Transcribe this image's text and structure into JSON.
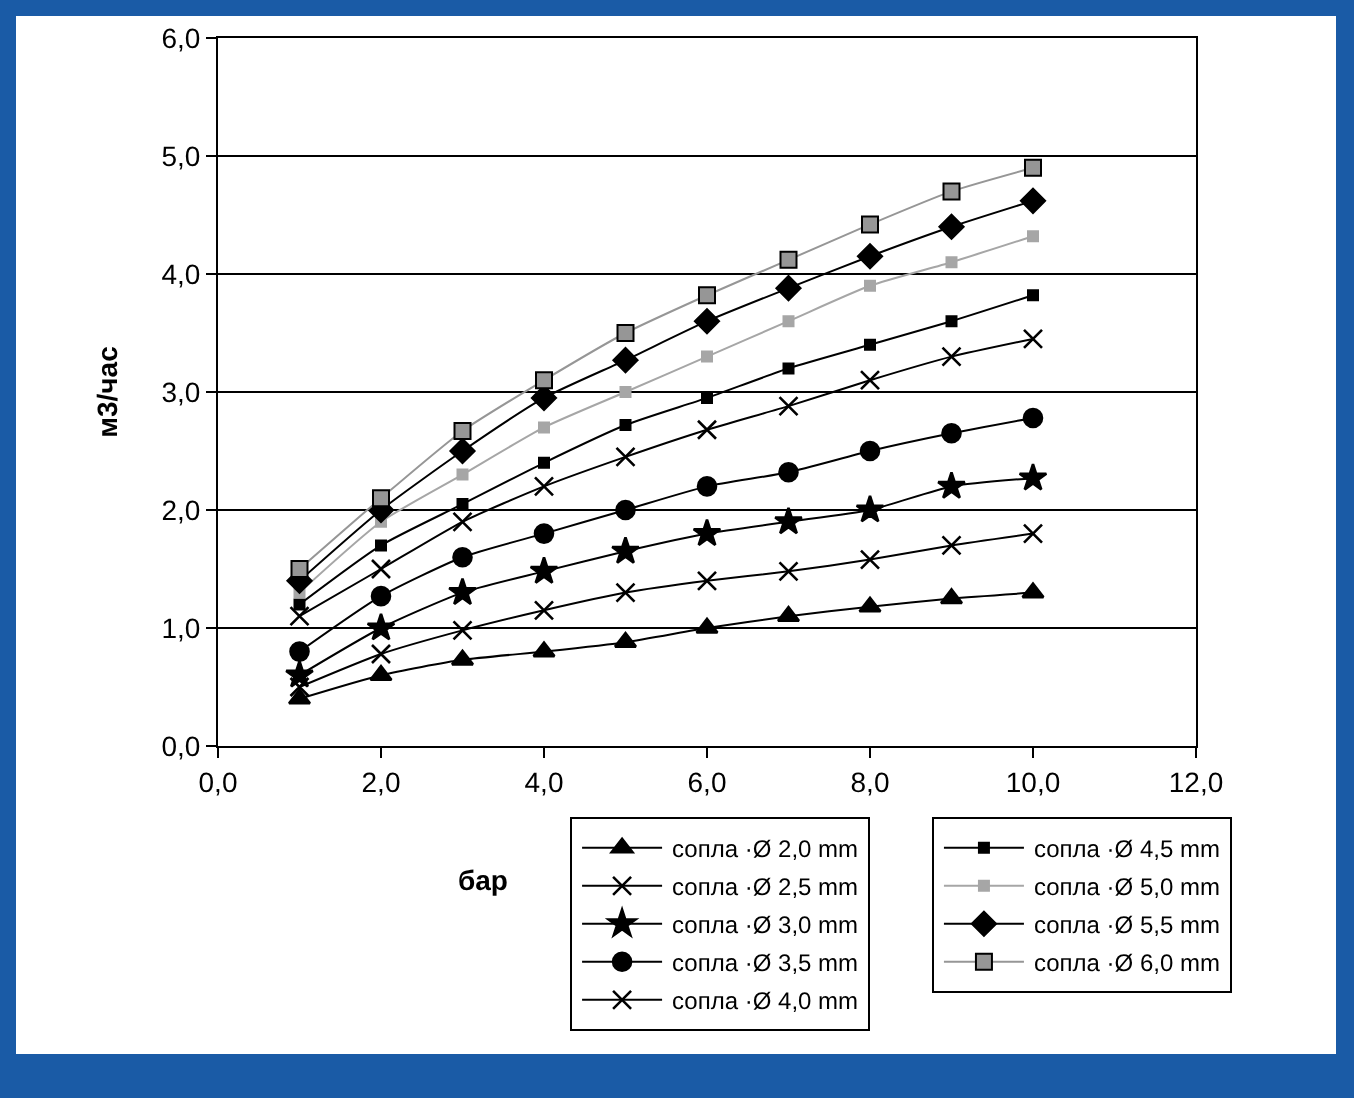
{
  "chart_data": {
    "type": "line",
    "xlabel": "бар",
    "ylabel": "м3/час",
    "x": [
      1,
      2,
      3,
      4,
      5,
      6,
      7,
      8,
      9,
      10
    ],
    "xlim": [
      0,
      12
    ],
    "xticks": [
      {
        "value": 0,
        "label": "0,0"
      },
      {
        "value": 2,
        "label": "2,0"
      },
      {
        "value": 4,
        "label": "4,0"
      },
      {
        "value": 6,
        "label": "6,0"
      },
      {
        "value": 8,
        "label": "8,0"
      },
      {
        "value": 10,
        "label": "10,0"
      },
      {
        "value": 12,
        "label": "12,0"
      }
    ],
    "ylim": [
      0,
      6
    ],
    "yticks": [
      {
        "value": 0,
        "label": "0,0"
      },
      {
        "value": 1,
        "label": "1,0"
      },
      {
        "value": 2,
        "label": "2,0"
      },
      {
        "value": 3,
        "label": "3,0"
      },
      {
        "value": 4,
        "label": "4,0"
      },
      {
        "value": 5,
        "label": "5,0"
      },
      {
        "value": 6,
        "label": "6,0"
      }
    ],
    "grid": "y",
    "legend": "bottom",
    "line_style": "solid",
    "series": [
      {
        "name": "сопла ·Ø 2,0 mm",
        "color": "#000000",
        "marker": "triangle",
        "values": [
          0.4,
          0.6,
          0.73,
          0.8,
          0.88,
          1.0,
          1.1,
          1.18,
          1.25,
          1.3
        ]
      },
      {
        "name": "сопла ·Ø 2,5 mm",
        "color": "#000000",
        "marker": "cross",
        "values": [
          0.5,
          0.78,
          0.98,
          1.15,
          1.3,
          1.4,
          1.48,
          1.58,
          1.7,
          1.8
        ]
      },
      {
        "name": "сопла ·Ø 3,0 mm",
        "color": "#000000",
        "marker": "star",
        "values": [
          0.6,
          1.0,
          1.3,
          1.48,
          1.65,
          1.8,
          1.9,
          2.0,
          2.2,
          2.27
        ]
      },
      {
        "name": "сопла ·Ø 3,5 mm",
        "color": "#000000",
        "marker": "circle",
        "values": [
          0.8,
          1.27,
          1.6,
          1.8,
          2.0,
          2.2,
          2.32,
          2.5,
          2.65,
          2.78
        ]
      },
      {
        "name": "сопла ·Ø 4,0 mm",
        "color": "#000000",
        "marker": "cross",
        "values": [
          1.1,
          1.5,
          1.9,
          2.2,
          2.45,
          2.68,
          2.88,
          3.1,
          3.3,
          3.45
        ]
      },
      {
        "name": "сопла ·Ø 4,5 mm",
        "color": "#000000",
        "marker": "square",
        "values": [
          1.2,
          1.7,
          2.05,
          2.4,
          2.72,
          2.95,
          3.2,
          3.4,
          3.6,
          3.82
        ]
      },
      {
        "name": "сопла ·Ø 5,0 mm",
        "color": "#a6a6a6",
        "marker": "square",
        "values": [
          1.3,
          1.9,
          2.3,
          2.7,
          3.0,
          3.3,
          3.6,
          3.9,
          4.1,
          4.32
        ]
      },
      {
        "name": "сопла ·Ø 5,5 mm",
        "color": "#000000",
        "marker": "diamond",
        "values": [
          1.4,
          2.0,
          2.5,
          2.95,
          3.27,
          3.6,
          3.88,
          4.15,
          4.4,
          4.62
        ]
      },
      {
        "name": "сопла ·Ø 6,0 mm",
        "color": "#969696",
        "marker": "square",
        "values": [
          1.5,
          2.1,
          2.67,
          3.1,
          3.5,
          3.82,
          4.12,
          4.42,
          4.7,
          4.9
        ]
      }
    ]
  }
}
